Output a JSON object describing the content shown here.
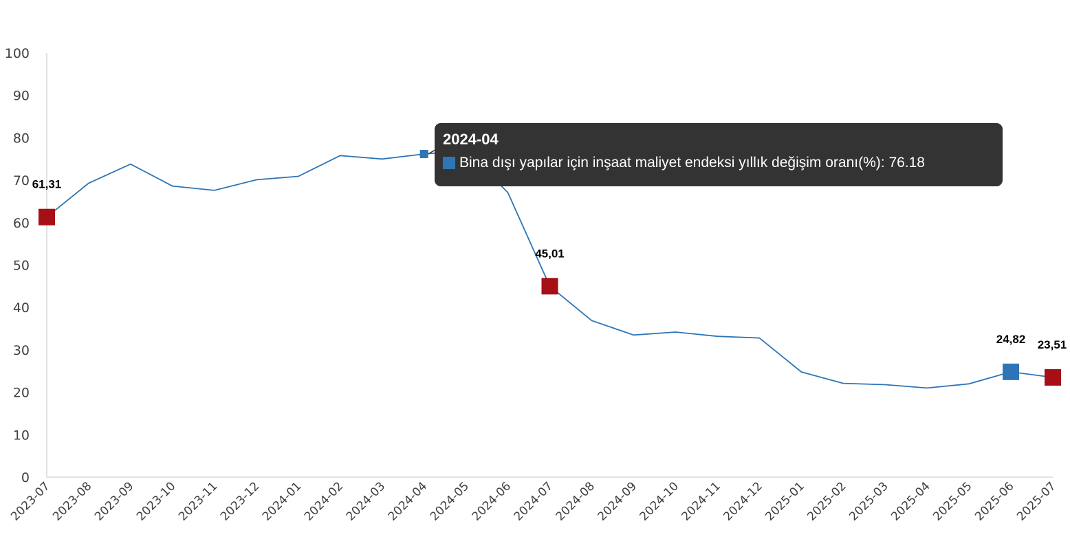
{
  "chart_data": {
    "type": "line",
    "title": "",
    "xlabel": "",
    "ylabel": "",
    "ylim": [
      0,
      100
    ],
    "yticks": [
      0,
      10,
      20,
      30,
      40,
      50,
      60,
      70,
      80,
      90,
      100
    ],
    "grid": false,
    "categories": [
      "2023-07",
      "2023-08",
      "2023-09",
      "2023-10",
      "2023-11",
      "2023-12",
      "2024-01",
      "2024-02",
      "2024-03",
      "2024-04",
      "2024-05",
      "2024-06",
      "2024-07",
      "2024-08",
      "2024-09",
      "2024-10",
      "2024-11",
      "2024-12",
      "2025-01",
      "2025-02",
      "2025-03",
      "2025-04",
      "2025-05",
      "2025-06",
      "2025-07"
    ],
    "series": [
      {
        "name": "Bina dışı yapılar için inşaat maliyet endeksi yıllık değişim oranı(%)",
        "color": "#2e75b6",
        "values": [
          61.31,
          69.3,
          73.8,
          68.6,
          67.6,
          70.1,
          70.9,
          75.8,
          75.0,
          76.18,
          77.0,
          67.1,
          45.01,
          36.9,
          33.5,
          34.2,
          33.2,
          32.8,
          24.8,
          22.1,
          21.8,
          21.0,
          22.0,
          24.82,
          23.51
        ]
      }
    ],
    "highlight_markers": [
      {
        "index": 0,
        "label": "61,31",
        "color": "#a50f15"
      },
      {
        "index": 12,
        "label": "45,01",
        "color": "#a50f15"
      },
      {
        "index": 23,
        "label": "24,82",
        "color": "#2e75b6"
      },
      {
        "index": 24,
        "label": "23,51",
        "color": "#a50f15"
      }
    ],
    "tooltip": {
      "index": 9,
      "title": "2024-04",
      "series_label": "Bina dışı yapılar için inşaat maliyet endeksi yıllık değişim oranı(%)",
      "value_text": "76.18",
      "swatch_color": "#2e75b6"
    }
  }
}
